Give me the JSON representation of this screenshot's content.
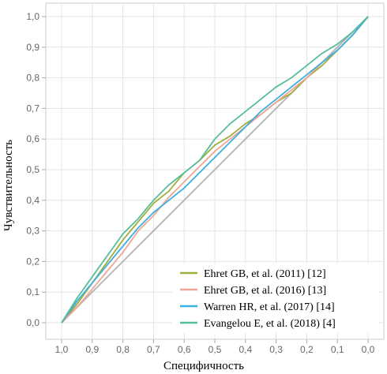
{
  "chart_data": {
    "type": "line",
    "title": "",
    "xlabel": "Специфичность",
    "ylabel": "Чувствительность",
    "xlim": [
      1.0,
      0.0
    ],
    "ylim": [
      0.0,
      1.0
    ],
    "x_reversed": true,
    "grid": true,
    "legend_position": "bottom-right",
    "x_ticks": [
      "1,0",
      "0,9",
      "0,8",
      "0,7",
      "0,6",
      "0,5",
      "0,4",
      "0,3",
      "0,2",
      "0,1",
      "0,0"
    ],
    "y_ticks": [
      "0,0",
      "0,1",
      "0,2",
      "0,3",
      "0,4",
      "0,5",
      "0,6",
      "0,7",
      "0,8",
      "0,9",
      "1,0"
    ],
    "reference_line": {
      "from": [
        1.0,
        0.0
      ],
      "to": [
        0.0,
        1.0
      ],
      "color": "#b8b8b8"
    },
    "series": [
      {
        "name": "Ehret GB, et al. (2011) [12]",
        "color": "#a3ad3c",
        "points": [
          [
            1.0,
            0.0
          ],
          [
            0.95,
            0.06
          ],
          [
            0.9,
            0.13
          ],
          [
            0.85,
            0.2
          ],
          [
            0.8,
            0.27
          ],
          [
            0.75,
            0.33
          ],
          [
            0.7,
            0.39
          ],
          [
            0.65,
            0.43
          ],
          [
            0.6,
            0.49
          ],
          [
            0.55,
            0.53
          ],
          [
            0.5,
            0.58
          ],
          [
            0.45,
            0.61
          ],
          [
            0.4,
            0.65
          ],
          [
            0.35,
            0.68
          ],
          [
            0.3,
            0.72
          ],
          [
            0.25,
            0.75
          ],
          [
            0.2,
            0.8
          ],
          [
            0.15,
            0.84
          ],
          [
            0.1,
            0.89
          ],
          [
            0.05,
            0.94
          ],
          [
            0.0,
            1.0
          ]
        ]
      },
      {
        "name": "Ehret GB, et al. (2016) [13]",
        "color": "#f0a696",
        "points": [
          [
            1.0,
            0.0
          ],
          [
            0.95,
            0.05
          ],
          [
            0.9,
            0.11
          ],
          [
            0.85,
            0.17
          ],
          [
            0.8,
            0.23
          ],
          [
            0.75,
            0.3
          ],
          [
            0.7,
            0.35
          ],
          [
            0.65,
            0.41
          ],
          [
            0.6,
            0.46
          ],
          [
            0.55,
            0.51
          ],
          [
            0.5,
            0.56
          ],
          [
            0.45,
            0.6
          ],
          [
            0.4,
            0.64
          ],
          [
            0.35,
            0.68
          ],
          [
            0.3,
            0.72
          ],
          [
            0.25,
            0.76
          ],
          [
            0.2,
            0.8
          ],
          [
            0.15,
            0.85
          ],
          [
            0.1,
            0.89
          ],
          [
            0.05,
            0.94
          ],
          [
            0.0,
            1.0
          ]
        ]
      },
      {
        "name": "Warren HR, et al. (2017) [14]",
        "color": "#3ab0e0",
        "points": [
          [
            1.0,
            0.0
          ],
          [
            0.95,
            0.07
          ],
          [
            0.9,
            0.13
          ],
          [
            0.85,
            0.19
          ],
          [
            0.8,
            0.25
          ],
          [
            0.75,
            0.31
          ],
          [
            0.7,
            0.36
          ],
          [
            0.65,
            0.4
          ],
          [
            0.6,
            0.44
          ],
          [
            0.55,
            0.49
          ],
          [
            0.5,
            0.54
          ],
          [
            0.45,
            0.59
          ],
          [
            0.4,
            0.64
          ],
          [
            0.35,
            0.69
          ],
          [
            0.3,
            0.73
          ],
          [
            0.25,
            0.77
          ],
          [
            0.2,
            0.81
          ],
          [
            0.15,
            0.85
          ],
          [
            0.1,
            0.89
          ],
          [
            0.05,
            0.94
          ],
          [
            0.0,
            1.0
          ]
        ]
      },
      {
        "name": "Evangelou E, et al. (2018) [4]",
        "color": "#56bd9b",
        "points": [
          [
            1.0,
            0.0
          ],
          [
            0.95,
            0.08
          ],
          [
            0.9,
            0.15
          ],
          [
            0.85,
            0.22
          ],
          [
            0.8,
            0.29
          ],
          [
            0.75,
            0.34
          ],
          [
            0.7,
            0.4
          ],
          [
            0.65,
            0.45
          ],
          [
            0.6,
            0.49
          ],
          [
            0.55,
            0.53
          ],
          [
            0.5,
            0.6
          ],
          [
            0.45,
            0.65
          ],
          [
            0.4,
            0.69
          ],
          [
            0.35,
            0.73
          ],
          [
            0.3,
            0.77
          ],
          [
            0.25,
            0.8
          ],
          [
            0.2,
            0.84
          ],
          [
            0.15,
            0.88
          ],
          [
            0.1,
            0.91
          ],
          [
            0.05,
            0.95
          ],
          [
            0.0,
            1.0
          ]
        ]
      }
    ]
  }
}
